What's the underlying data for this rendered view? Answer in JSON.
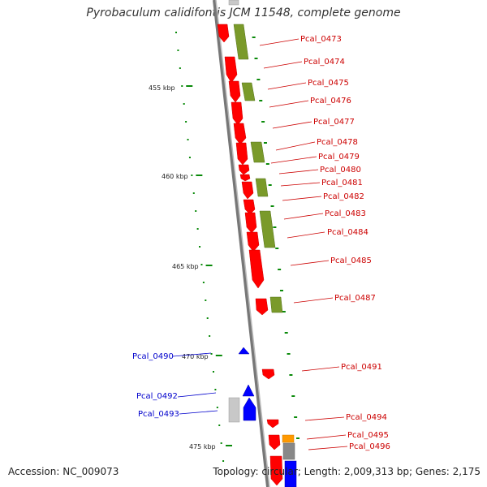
{
  "title": "Pyrobaculum calidifontis JCM 11548, complete genome",
  "footer": {
    "accession": "Accession: NC_009073",
    "summary": "Topology: circular; Length: 2,009,313 bp; Genes: 2,175"
  },
  "colors": {
    "forward_cds": "#ff0000",
    "reverse_cds": "#0000ff",
    "other_feature": "#6b8e23",
    "gray_feature": "#aaaaaa",
    "orange_feature": "#ff9900",
    "backbone": "#888888",
    "tick": "#008000",
    "label_red": "#cc0000",
    "label_blue": "#0000cc"
  },
  "scale_labels": [
    "455 kbp",
    "460 kbp",
    "465 kbp",
    "470 kbp",
    "475 kbp"
  ],
  "gene_labels_right": [
    "Pcal_0473",
    "Pcal_0474",
    "Pcal_0475",
    "Pcal_0476",
    "Pcal_0477",
    "Pcal_0478",
    "Pcal_0479",
    "Pcal_0480",
    "Pcal_0481",
    "Pcal_0482",
    "Pcal_0483",
    "Pcal_0484",
    "Pcal_0485",
    "Pcal_0487",
    "Pcal_0491",
    "Pcal_0494",
    "Pcal_0495",
    "Pcal_0496"
  ],
  "gene_labels_left": [
    "Pcal_0490",
    "Pcal_0492",
    "Pcal_0493"
  ]
}
